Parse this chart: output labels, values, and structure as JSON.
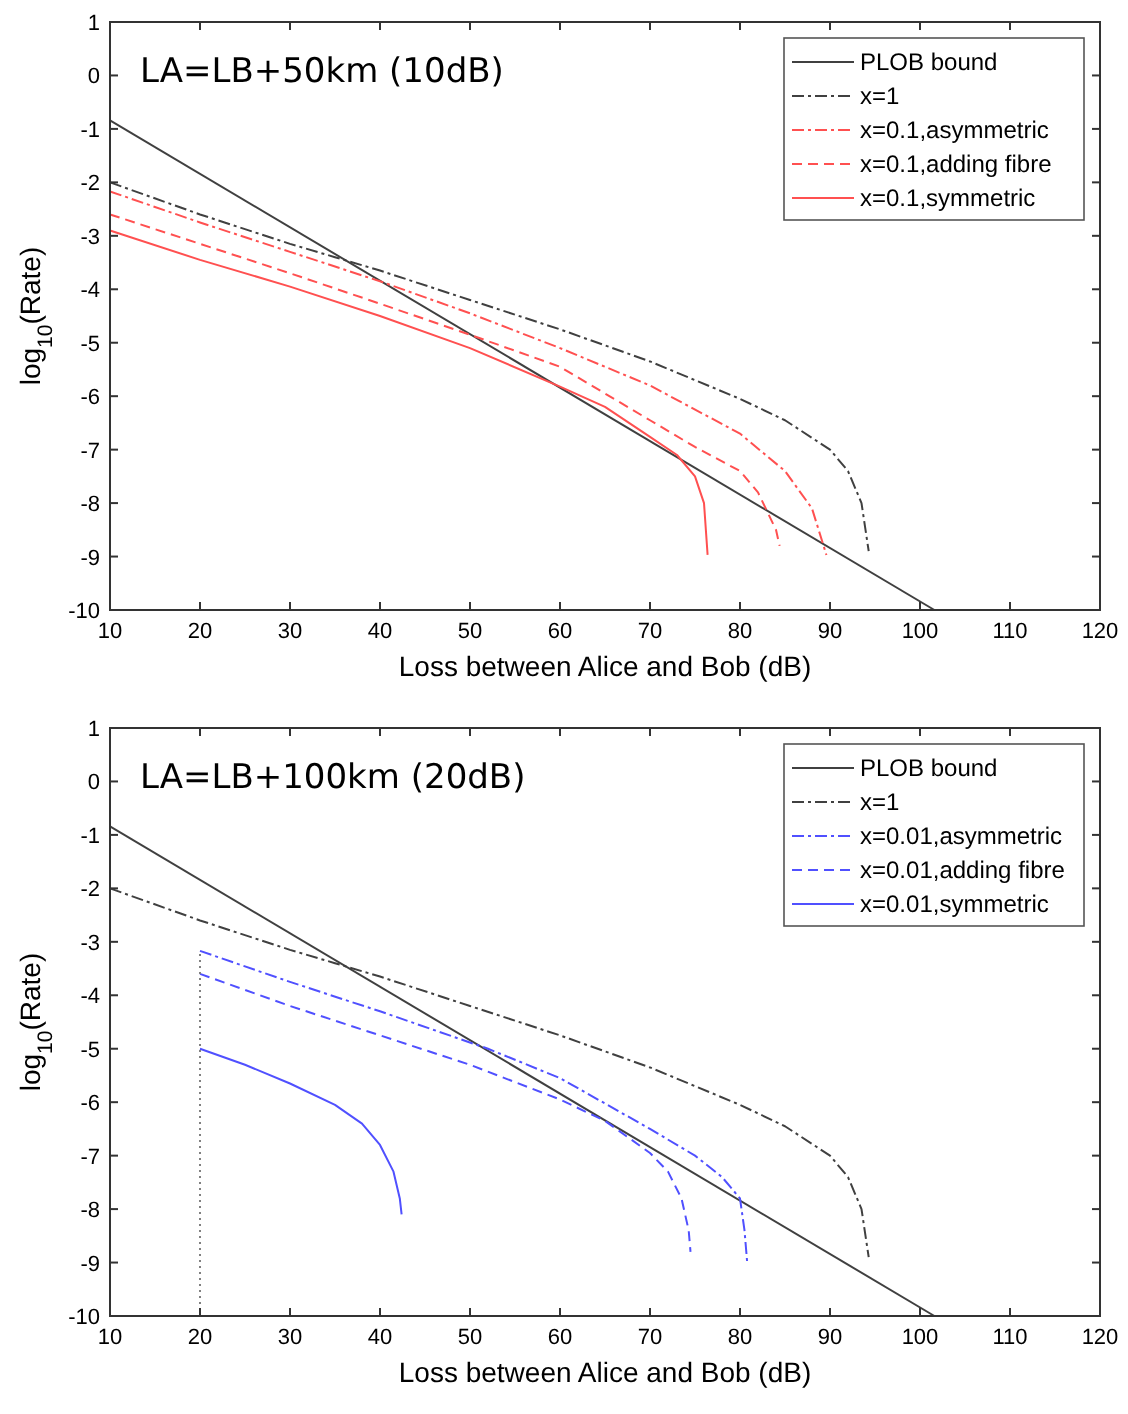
{
  "chart_data": [
    {
      "type": "line",
      "xlabel": "Loss between Alice and Bob (dB)",
      "ylabel": "log$_{10}$(Rate)",
      "annotations": [
        "LA=LB+50km (10dB)"
      ],
      "xlim": [
        10,
        120
      ],
      "xticks": [
        10,
        20,
        30,
        40,
        50,
        60,
        70,
        80,
        90,
        100,
        110,
        120
      ],
      "ylim": [
        -10,
        1
      ],
      "yticks": [
        -10,
        -9,
        -8,
        -7,
        -6,
        -5,
        -4,
        -3,
        -2,
        -1,
        0,
        1
      ],
      "grid": false,
      "legend": "top right",
      "marker": "none",
      "series": [
        {
          "name": "PLOB bound",
          "color": "#404040",
          "line_style": "solid",
          "x": [
            10,
            101.6
          ],
          "values": [
            -0.84,
            -10
          ]
        },
        {
          "name": "x=1",
          "color": "#404040",
          "line_style": "dashdot",
          "x": [
            10,
            20,
            30,
            35,
            40,
            50,
            60,
            70,
            80,
            85,
            90,
            92,
            93.5,
            94.3
          ],
          "values": [
            -2.0,
            -2.6,
            -3.15,
            -3.4,
            -3.65,
            -4.2,
            -4.75,
            -5.35,
            -6.05,
            -6.45,
            -7.0,
            -7.4,
            -8.0,
            -8.9
          ]
        },
        {
          "name": "x=0.1,asymmetric",
          "color": "#ff5050",
          "line_style": "dashdot",
          "x": [
            10,
            20,
            30,
            40,
            50,
            60,
            70,
            80,
            85,
            88,
            89.6
          ],
          "values": [
            -2.17,
            -2.75,
            -3.3,
            -3.85,
            -4.45,
            -5.1,
            -5.8,
            -6.7,
            -7.4,
            -8.1,
            -8.97
          ]
        },
        {
          "name": "x=0.1,adding fibre",
          "color": "#ff5050",
          "line_style": "dashed",
          "x": [
            10,
            20,
            30,
            40,
            50,
            60,
            70,
            75,
            80,
            82,
            84,
            84.4
          ],
          "values": [
            -2.6,
            -3.15,
            -3.7,
            -4.27,
            -4.85,
            -5.45,
            -6.45,
            -6.95,
            -7.4,
            -7.8,
            -8.5,
            -8.8
          ]
        },
        {
          "name": "x=0.1,symmetric",
          "color": "#ff5050",
          "line_style": "solid",
          "x": [
            10,
            20,
            30,
            40,
            50,
            60,
            65,
            70,
            73,
            75,
            76,
            76.4
          ],
          "values": [
            -2.9,
            -3.45,
            -3.95,
            -4.5,
            -5.1,
            -5.82,
            -6.2,
            -6.76,
            -7.1,
            -7.5,
            -8.0,
            -8.97
          ]
        }
      ]
    },
    {
      "type": "line",
      "xlabel": "Loss between Alice and Bob (dB)",
      "ylabel": "log$_{10}$(Rate)",
      "annotations": [
        "LA=LB+100km (20dB)"
      ],
      "xlim": [
        10,
        120
      ],
      "xticks": [
        10,
        20,
        30,
        40,
        50,
        60,
        70,
        80,
        90,
        100,
        110,
        120
      ],
      "ylim": [
        -10,
        1
      ],
      "yticks": [
        -10,
        -9,
        -8,
        -7,
        -6,
        -5,
        -4,
        -3,
        -2,
        -1,
        0,
        1
      ],
      "grid": false,
      "legend": "top right",
      "marker": "none",
      "series": [
        {
          "name": "PLOB bound",
          "color": "#404040",
          "line_style": "solid",
          "x": [
            10,
            101.6
          ],
          "values": [
            -0.84,
            -10
          ]
        },
        {
          "name": "x=1",
          "color": "#404040",
          "line_style": "dashdot",
          "x": [
            10,
            20,
            30,
            35,
            40,
            50,
            60,
            70,
            80,
            85,
            90,
            92,
            93.5,
            94.3
          ],
          "values": [
            -2.0,
            -2.6,
            -3.15,
            -3.4,
            -3.65,
            -4.2,
            -4.75,
            -5.35,
            -6.05,
            -6.45,
            -7.0,
            -7.4,
            -8.0,
            -8.9
          ]
        },
        {
          "name": "x=0.01,asymmetric",
          "color": "#5050ff",
          "line_style": "dashdot",
          "x": [
            20,
            30,
            40,
            52,
            60,
            70,
            75,
            78,
            80,
            80.5,
            80.8
          ],
          "values": [
            -3.17,
            -3.75,
            -4.3,
            -5.0,
            -5.55,
            -6.5,
            -7.0,
            -7.4,
            -7.8,
            -8.4,
            -9.0
          ]
        },
        {
          "name": "x=0.01,adding fibre",
          "color": "#5050ff",
          "line_style": "dashed",
          "x": [
            20,
            30,
            40,
            50,
            60,
            65,
            70,
            72,
            73.5,
            74.3,
            74.5
          ],
          "values": [
            -3.6,
            -4.2,
            -4.75,
            -5.3,
            -5.95,
            -6.35,
            -6.95,
            -7.3,
            -7.8,
            -8.4,
            -8.8
          ]
        },
        {
          "name": "x=0.01,symmetric",
          "color": "#5050ff",
          "line_style": "solid",
          "x": [
            20,
            25,
            30,
            35,
            38,
            40,
            41.5,
            42.2,
            42.4
          ],
          "values": [
            -5.0,
            -5.3,
            -5.65,
            -6.05,
            -6.4,
            -6.8,
            -7.3,
            -7.8,
            -8.1
          ]
        },
        {
          "color": "#808080",
          "line_style": "dotted",
          "x": [
            20,
            20
          ],
          "values": [
            -10,
            -3.17
          ]
        }
      ]
    }
  ]
}
